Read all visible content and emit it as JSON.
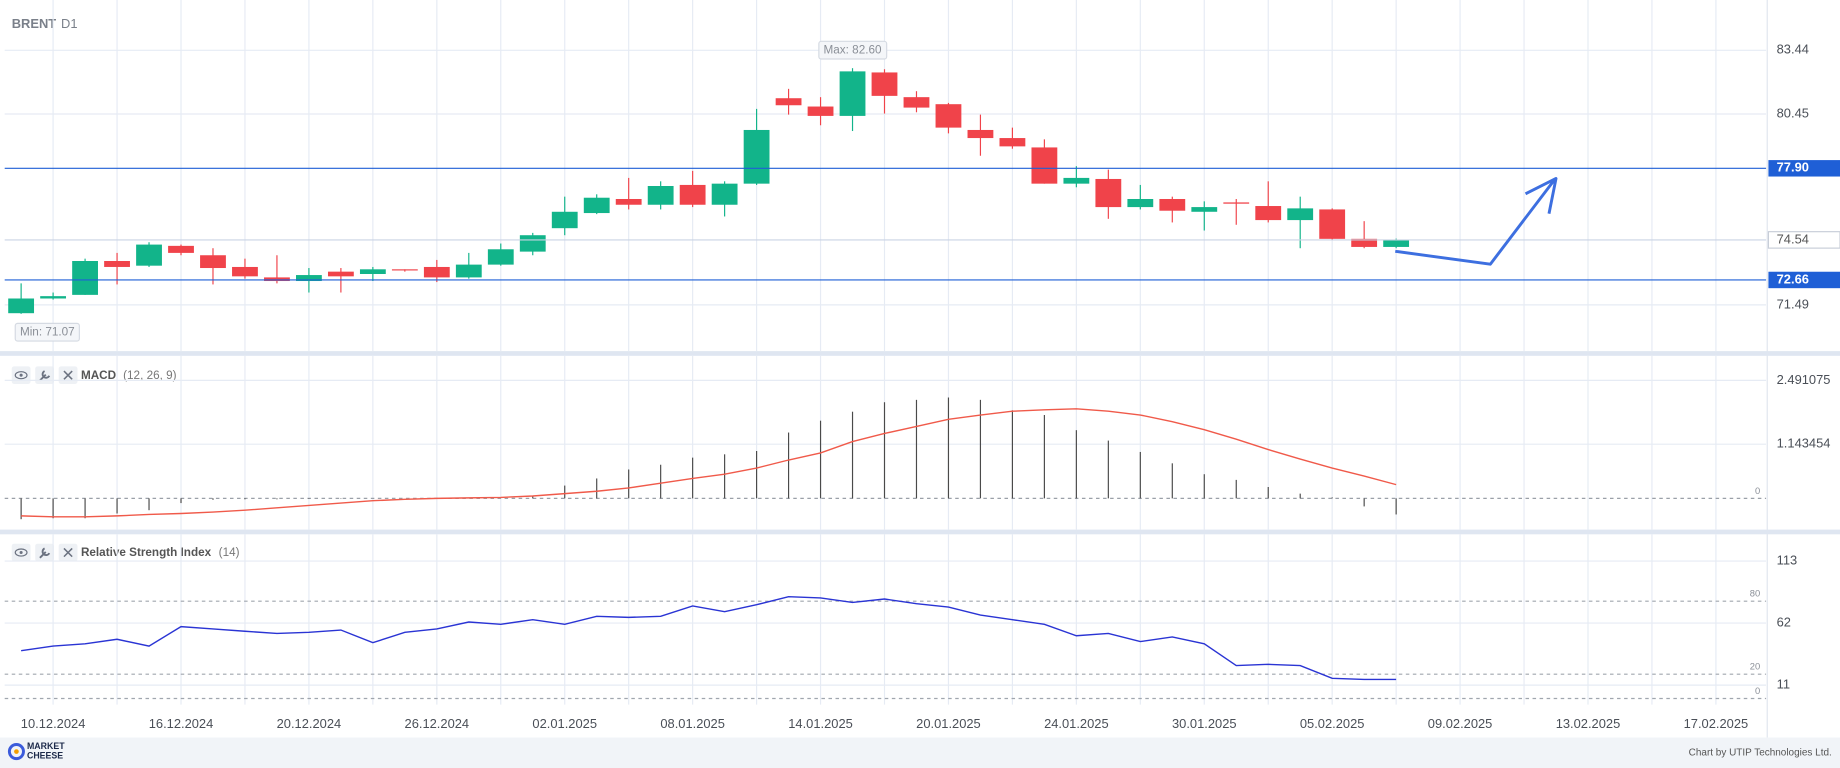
{
  "header": {
    "symbol": "BRENT",
    "timeframe": "D1"
  },
  "chart_data": [
    {
      "type": "candlestick",
      "categories": [
        null,
        "10.12.2024",
        null,
        null,
        null,
        "16.12.2024",
        null,
        null,
        null,
        "20.12.2024",
        null,
        null,
        null,
        "26.12.2024",
        null,
        null,
        null,
        "02.01.2025",
        null,
        null,
        null,
        "08.01.2025",
        null,
        null,
        null,
        "14.01.2025",
        null,
        null,
        null,
        "20.01.2025",
        null,
        null,
        null,
        "24.01.2025",
        null,
        null,
        null,
        "30.01.2025",
        null,
        null,
        null,
        "05.02.2025",
        null,
        null,
        null,
        "09.02.2025",
        null,
        null,
        null,
        "13.02.2025",
        null,
        null,
        null,
        "17.02.2025",
        null
      ],
      "open": [
        71.1,
        71.79,
        71.96,
        73.55,
        73.33,
        74.26,
        73.82,
        73.27,
        72.78,
        72.61,
        73.05,
        72.94,
        73.16,
        73.27,
        72.78,
        73.38,
        73.99,
        75.09,
        75.8,
        76.46,
        76.19,
        77.12,
        76.19,
        77.18,
        81.19,
        80.8,
        80.36,
        82.4,
        81.24,
        80.91,
        79.7,
        79.32,
        78.88,
        77.18,
        77.4,
        76.08,
        76.46,
        75.86,
        76.3,
        76.13,
        75.47,
        75.97,
        74.59,
        74.21,
        null,
        null,
        null,
        null,
        null,
        null,
        null,
        null,
        null,
        null,
        null
      ],
      "high": [
        72.5,
        72.07,
        73.66,
        73.93,
        74.43,
        74.32,
        74.15,
        73.66,
        73.82,
        73.22,
        73.22,
        73.27,
        73.16,
        73.6,
        73.93,
        74.37,
        74.87,
        76.57,
        76.68,
        77.45,
        77.29,
        77.78,
        77.29,
        80.69,
        81.63,
        81.24,
        82.6,
        82.55,
        81.52,
        80.97,
        80.42,
        79.81,
        79.26,
        78.0,
        77.84,
        77.12,
        76.57,
        76.35,
        76.46,
        77.29,
        76.57,
        76.02,
        75.42,
        74.6,
        null,
        null,
        null,
        null,
        null,
        null,
        null,
        null,
        null,
        null,
        null
      ],
      "low": [
        71.07,
        71.74,
        71.96,
        72.45,
        73.27,
        73.82,
        72.45,
        72.72,
        72.5,
        72.07,
        72.07,
        72.61,
        73.05,
        72.56,
        72.72,
        73.33,
        73.82,
        74.76,
        75.75,
        75.97,
        75.97,
        76.08,
        75.64,
        77.12,
        80.42,
        79.92,
        79.65,
        80.47,
        80.53,
        79.54,
        78.49,
        78.82,
        77.18,
        77.01,
        75.53,
        75.97,
        75.36,
        74.98,
        75.25,
        75.36,
        74.15,
        74.54,
        74.15,
        74.15,
        null,
        null,
        null,
        null,
        null,
        null,
        null,
        null,
        null,
        null,
        null
      ],
      "close": [
        71.79,
        71.9,
        73.55,
        73.27,
        74.32,
        73.93,
        73.22,
        72.83,
        72.61,
        72.89,
        72.83,
        73.16,
        73.11,
        72.78,
        73.38,
        74.1,
        74.76,
        75.86,
        76.52,
        76.19,
        77.07,
        76.19,
        77.18,
        79.7,
        80.86,
        80.36,
        82.45,
        81.3,
        80.75,
        79.81,
        79.32,
        78.93,
        77.18,
        77.45,
        76.08,
        76.46,
        75.91,
        76.08,
        76.24,
        75.47,
        76.02,
        74.59,
        74.21,
        74.54,
        null,
        null,
        null,
        null,
        null,
        null,
        null,
        null,
        null,
        null,
        null
      ],
      "up_color": "#12b48a",
      "down_color": "#f0434a",
      "ylim": [
        69.32,
        85.8
      ],
      "yticks": [
        71.49,
        80.45,
        83.44
      ],
      "grid": true,
      "max_label": "Max: 82.60",
      "min_label": "Min: 71.07",
      "hlines": [
        {
          "value": 77.9,
          "label": "77.90"
        },
        {
          "value": 72.66,
          "label": "72.66"
        }
      ],
      "hline_color": "#1f5fd6",
      "last_price": 74.54
    },
    {
      "type": "macd",
      "name": "MACD",
      "params": "(12, 26, 9)",
      "histogram": [
        -0.44,
        -0.42,
        -0.42,
        -0.32,
        -0.25,
        -0.1,
        -0.03,
        -0.02,
        -0.02,
        -0.01,
        -0.01,
        0,
        0,
        0,
        0,
        0,
        0.05,
        0.27,
        0.42,
        0.61,
        0.71,
        0.86,
        0.93,
        1.0,
        1.39,
        1.64,
        1.83,
        2.03,
        2.08,
        2.13,
        2.08,
        1.86,
        1.76,
        1.44,
        1.22,
        0.98,
        0.74,
        0.51,
        0.39,
        0.24,
        0.1,
        0.02,
        -0.17,
        -0.34,
        null,
        null,
        null,
        null,
        null,
        null,
        null,
        null,
        null,
        null,
        null
      ],
      "signal": [
        -0.37,
        -0.39,
        -0.39,
        -0.37,
        -0.34,
        -0.32,
        -0.29,
        -0.25,
        -0.2,
        -0.15,
        -0.1,
        -0.05,
        -0.02,
        0.0,
        0.01,
        0.02,
        0.05,
        0.1,
        0.15,
        0.22,
        0.32,
        0.42,
        0.51,
        0.64,
        0.81,
        0.96,
        1.2,
        1.37,
        1.52,
        1.67,
        1.76,
        1.84,
        1.87,
        1.89,
        1.84,
        1.76,
        1.62,
        1.45,
        1.25,
        1.03,
        0.83,
        0.64,
        0.47,
        0.29,
        null,
        null,
        null,
        null,
        null,
        null,
        null,
        null,
        null,
        null,
        null
      ],
      "histogram_color": "#4a4a4a",
      "signal_color": "#f05a4a",
      "ylim": [
        -0.66,
        3.01
      ],
      "yticks": [
        0,
        1.143454,
        2.491075
      ],
      "grid": true
    },
    {
      "type": "line",
      "name": "Relative Strength Index",
      "params": "(14)",
      "values": [
        39.3,
        43.1,
        45.0,
        48.7,
        43.1,
        59.1,
        57.2,
        55.3,
        53.5,
        54.4,
        56.3,
        45.9,
        54.4,
        57.2,
        62.9,
        61.0,
        64.8,
        61.0,
        67.6,
        66.7,
        67.6,
        76.1,
        71.4,
        77.1,
        83.7,
        82.7,
        79.0,
        81.8,
        78.0,
        75.2,
        68.6,
        64.8,
        61.0,
        51.6,
        53.5,
        46.8,
        50.6,
        45.0,
        27.1,
        28.1,
        27.1,
        16.6,
        15.7,
        15.7,
        null,
        null,
        null,
        null,
        null,
        null,
        null,
        null,
        null,
        null,
        null
      ],
      "color": "#2a34d4",
      "ylim": [
        -5,
        135
      ],
      "yticks": [
        11,
        62,
        113
      ],
      "levels": [
        0,
        20,
        80
      ],
      "grid": true
    }
  ],
  "footer": {
    "logo": [
      "MARKET",
      "CHEESE"
    ],
    "credit": "Chart by UTIP Technologies Ltd."
  }
}
